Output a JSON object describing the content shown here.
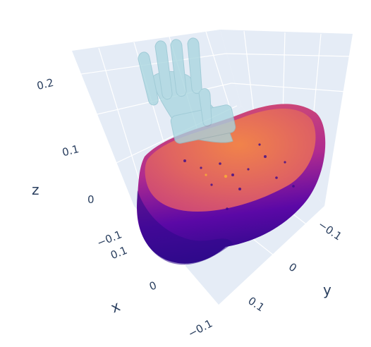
{
  "chart_data": {
    "type": "scatter3d",
    "title": "",
    "scene": {
      "bgcolor": "#e5ecf6",
      "gridcolor": "#ffffff",
      "grid": true
    },
    "axes": {
      "x": {
        "title": "x",
        "ticks": [
          "0.1",
          "0",
          "−0.1"
        ]
      },
      "y": {
        "title": "y",
        "ticks": [
          "−0.1",
          "0",
          "0.1"
        ]
      },
      "z": {
        "title": "z",
        "ticks": [
          "−0.1",
          "0",
          "0.1",
          "0.2"
        ]
      }
    },
    "series": [
      {
        "type": "point-cloud",
        "shape": "cylinder",
        "colorscale": "plasma",
        "colorscale_visible": [
          "#2d0a8a",
          "#5b08a6",
          "#8a0aa5",
          "#b02b8f",
          "#cc4778",
          "#e06461",
          "#f1834a"
        ]
      },
      {
        "type": "mesh",
        "shape": "hand",
        "color": "#a9d6df",
        "opacity": 0.55
      }
    ]
  }
}
